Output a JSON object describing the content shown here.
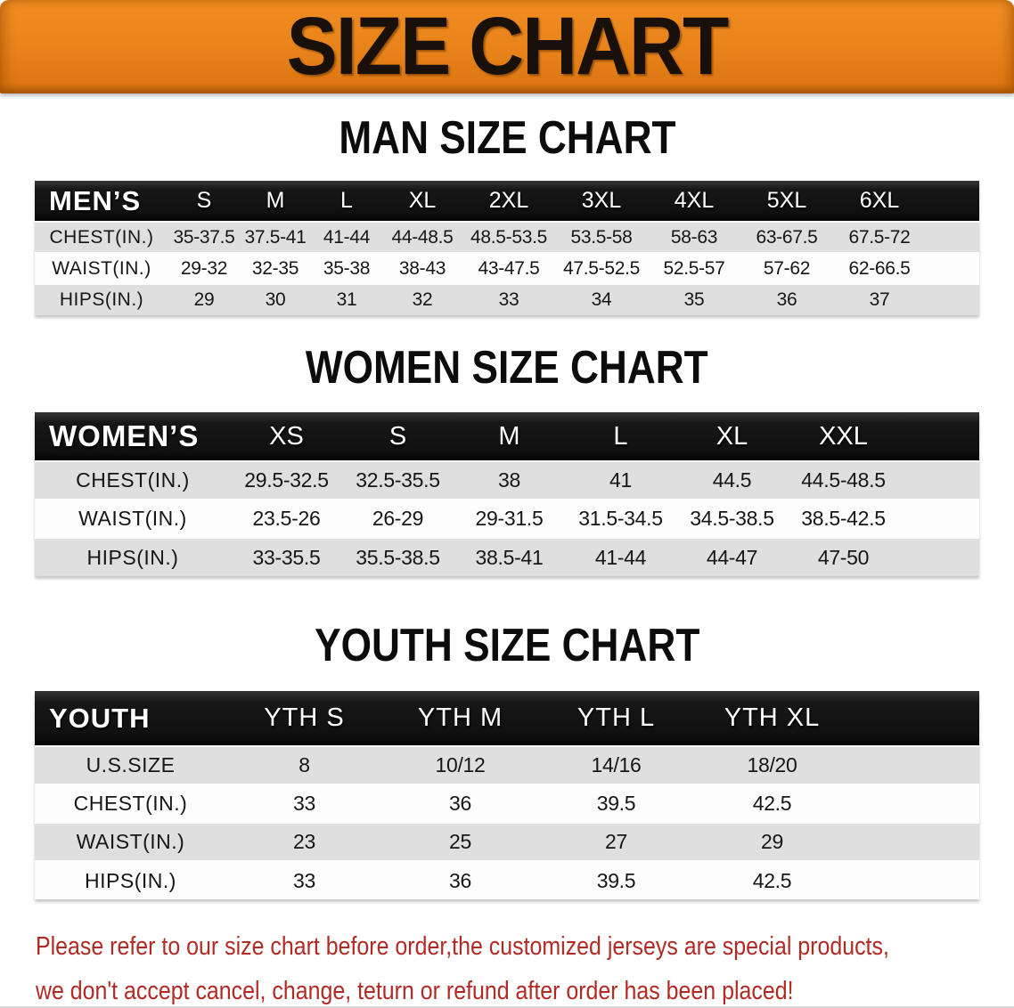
{
  "banner": {
    "title": "SIZE CHART"
  },
  "sections": [
    {
      "heading": "MAN SIZE CHART",
      "label": "MEN’S",
      "columns": [
        "S",
        "M",
        "L",
        "XL",
        "2XL",
        "3XL",
        "4XL",
        "5XL",
        "6XL"
      ],
      "rows": [
        {
          "label": "CHEST(IN.)",
          "values": [
            "35-37.5",
            "37.5-41",
            "41-44",
            "44-48.5",
            "48.5-53.5",
            "53.5-58",
            "58-63",
            "63-67.5",
            "67.5-72"
          ]
        },
        {
          "label": "WAIST(IN.)",
          "values": [
            "29-32",
            "32-35",
            "35-38",
            "38-43",
            "43-47.5",
            "47.5-52.5",
            "52.5-57",
            "57-62",
            "62-66.5"
          ]
        },
        {
          "label": "HIPS(IN.)",
          "values": [
            "29",
            "30",
            "31",
            "32",
            "33",
            "34",
            "35",
            "36",
            "37"
          ]
        }
      ]
    },
    {
      "heading": "WOMEN SIZE CHART",
      "label": "WOMEN’S",
      "columns": [
        "XS",
        "S",
        "M",
        "L",
        "XL",
        "XXL"
      ],
      "rows": [
        {
          "label": "CHEST(IN.)",
          "values": [
            "29.5-32.5",
            "32.5-35.5",
            "38",
            "41",
            "44.5",
            "44.5-48.5"
          ]
        },
        {
          "label": "WAIST(IN.)",
          "values": [
            "23.5-26",
            "26-29",
            "29-31.5",
            "31.5-34.5",
            "34.5-38.5",
            "38.5-42.5"
          ]
        },
        {
          "label": "HIPS(IN.)",
          "values": [
            "33-35.5",
            "35.5-38.5",
            "38.5-41",
            "41-44",
            "44-47",
            "47-50"
          ]
        }
      ]
    },
    {
      "heading": "YOUTH SIZE CHART",
      "label": "YOUTH",
      "columns": [
        "YTH S",
        "YTH M",
        "YTH L",
        "YTH XL"
      ],
      "rows": [
        {
          "label": "U.S.SIZE",
          "values": [
            "8",
            "10/12",
            "14/16",
            "18/20"
          ]
        },
        {
          "label": "CHEST(IN.)",
          "values": [
            "33",
            "36",
            "39.5",
            "42.5"
          ]
        },
        {
          "label": "WAIST(IN.)",
          "values": [
            "23",
            "25",
            "27",
            "29"
          ]
        },
        {
          "label": "HIPS(IN.)",
          "values": [
            "33",
            "36",
            "39.5",
            "42.5"
          ]
        }
      ]
    }
  ],
  "disclaimer": {
    "line1": "Please refer to our size chart before order,the customized jerseys are special products,",
    "line2": "we don't accept cancel, change, teturn or refund after order has been placed!"
  },
  "colors": {
    "banner_orange": "#E8821A",
    "table_header_black": "#161616",
    "row_gray": "#DFDFDF",
    "disclaimer_red": "#B22A24"
  }
}
